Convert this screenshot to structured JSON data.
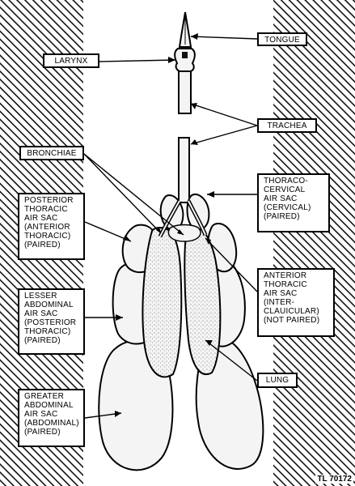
{
  "labels": {
    "tongue": "TONGUE",
    "larynx": "LARYNX",
    "trachea": "TRACHEA",
    "bronchiae": "BRONCHIAE",
    "thoraco_cervical": "THORACO-\nCERVICAL\nAIR SAC\n(CERVICAL)\n(PAIRED)",
    "posterior_thoracic": "POSTERIOR\nTHORACIC\nAIR SAC\n(ANTERIOR\nTHORACIC)\n(PAIRED)",
    "anterior_thoracic": "ANTERIOR\nTHORACIC\nAIR SAC\n(INTER-\nCLAUICULAR)\n(NOT PAIRED)",
    "lesser_abdominal": "LESSER\nABDOMINAL\nAIR SAC\n(POSTERIOR\nTHORACIC)\n(PAIRED)",
    "lung": "LUNG",
    "greater_abdominal": "GREATER\nABDOMINAL\nAIR SAC\n(ABDOMINAL)\n(PAIRED)"
  },
  "figure_id": "TL 70172",
  "colors": {
    "ink": "#000000",
    "paper": "#ffffff",
    "organ_fill": "#f4f4f4"
  }
}
